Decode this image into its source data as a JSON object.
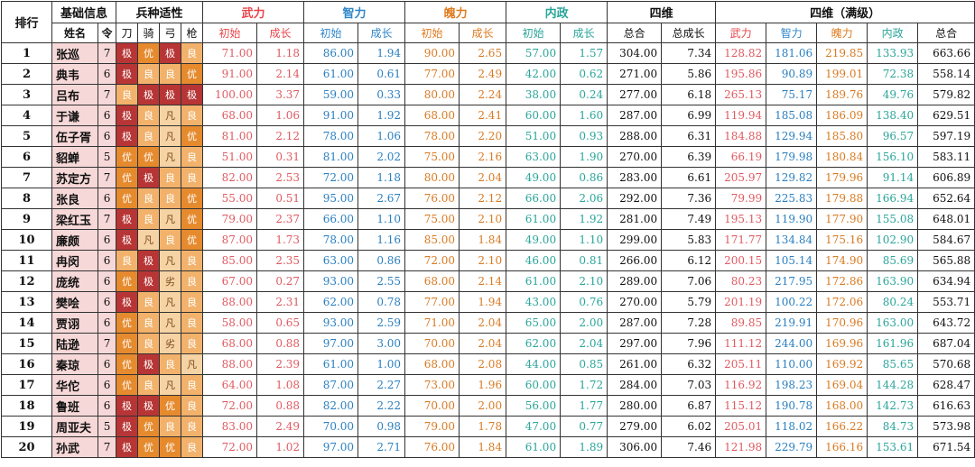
{
  "header": {
    "rank": "排行",
    "basic_info": "基础信息",
    "troop_fit": "兵种适性",
    "wu": "武力",
    "zhi": "智力",
    "mei": "魄力",
    "nei": "内政",
    "siwei": "四维",
    "siwei_max": "四维（满级）",
    "name": "姓名",
    "ling": "令",
    "dao": "刀",
    "qi": "骑",
    "gong": "弓",
    "qiang": "枪",
    "init": "初始",
    "grow": "成长",
    "total": "总合",
    "total_grow": "总成长"
  },
  "colors": {
    "wu": "#e05a60",
    "zhi": "#2a7fc0",
    "mei": "#d97a22",
    "nei": "#2aa59a",
    "name_bg": "#f7d8d8",
    "apt_ji": "#b83535",
    "apt_you": "#e68a2e",
    "apt_liang": "#f2b26b",
    "apt_fan": "#f6d3a4"
  },
  "rows": [
    {
      "rank": "1",
      "name": "张巡",
      "ling": "7",
      "apt": [
        "极",
        "优",
        "极",
        "良"
      ],
      "wu_i": "71.00",
      "wu_g": "1.18",
      "zhi_i": "86.00",
      "zhi_g": "1.94",
      "mei_i": "90.00",
      "mei_g": "2.65",
      "nei_i": "57.00",
      "nei_g": "1.57",
      "total": "304.00",
      "total_g": "7.34",
      "m_wu": "128.82",
      "m_zhi": "181.06",
      "m_mei": "219.85",
      "m_nei": "133.93",
      "m_total": "663.66"
    },
    {
      "rank": "2",
      "name": "典韦",
      "ling": "6",
      "apt": [
        "极",
        "良",
        "良",
        "优"
      ],
      "wu_i": "91.00",
      "wu_g": "2.14",
      "zhi_i": "61.00",
      "zhi_g": "0.61",
      "mei_i": "77.00",
      "mei_g": "2.49",
      "nei_i": "42.00",
      "nei_g": "0.62",
      "total": "271.00",
      "total_g": "5.86",
      "m_wu": "195.86",
      "m_zhi": "90.89",
      "m_mei": "199.01",
      "m_nei": "72.38",
      "m_total": "558.14"
    },
    {
      "rank": "3",
      "name": "吕布",
      "ling": "7",
      "apt": [
        "良",
        "极",
        "极",
        "极"
      ],
      "wu_i": "100.00",
      "wu_g": "3.37",
      "zhi_i": "59.00",
      "zhi_g": "0.33",
      "mei_i": "80.00",
      "mei_g": "2.24",
      "nei_i": "38.00",
      "nei_g": "0.24",
      "total": "277.00",
      "total_g": "6.18",
      "m_wu": "265.13",
      "m_zhi": "75.17",
      "m_mei": "189.76",
      "m_nei": "49.76",
      "m_total": "579.82"
    },
    {
      "rank": "4",
      "name": "于谦",
      "ling": "6",
      "apt": [
        "极",
        "良",
        "凡",
        "良"
      ],
      "wu_i": "68.00",
      "wu_g": "1.06",
      "zhi_i": "91.00",
      "zhi_g": "1.92",
      "mei_i": "68.00",
      "mei_g": "2.41",
      "nei_i": "60.00",
      "nei_g": "1.60",
      "total": "287.00",
      "total_g": "6.99",
      "m_wu": "119.94",
      "m_zhi": "185.08",
      "m_mei": "186.09",
      "m_nei": "138.40",
      "m_total": "629.51"
    },
    {
      "rank": "5",
      "name": "伍子胥",
      "ling": "6",
      "apt": [
        "极",
        "良",
        "凡",
        "优"
      ],
      "wu_i": "81.00",
      "wu_g": "2.12",
      "zhi_i": "78.00",
      "zhi_g": "1.06",
      "mei_i": "78.00",
      "mei_g": "2.20",
      "nei_i": "51.00",
      "nei_g": "0.93",
      "total": "288.00",
      "total_g": "6.31",
      "m_wu": "184.88",
      "m_zhi": "129.94",
      "m_mei": "185.80",
      "m_nei": "96.57",
      "m_total": "597.19"
    },
    {
      "rank": "6",
      "name": "貂蝉",
      "ling": "5",
      "apt": [
        "优",
        "优",
        "凡",
        "良"
      ],
      "wu_i": "51.00",
      "wu_g": "0.31",
      "zhi_i": "81.00",
      "zhi_g": "2.02",
      "mei_i": "75.00",
      "mei_g": "2.16",
      "nei_i": "63.00",
      "nei_g": "1.90",
      "total": "270.00",
      "total_g": "6.39",
      "m_wu": "66.19",
      "m_zhi": "179.98",
      "m_mei": "180.84",
      "m_nei": "156.10",
      "m_total": "583.11"
    },
    {
      "rank": "7",
      "name": "苏定方",
      "ling": "7",
      "apt": [
        "优",
        "极",
        "良",
        "良"
      ],
      "wu_i": "82.00",
      "wu_g": "2.53",
      "zhi_i": "72.00",
      "zhi_g": "1.18",
      "mei_i": "80.00",
      "mei_g": "2.04",
      "nei_i": "49.00",
      "nei_g": "0.86",
      "total": "283.00",
      "total_g": "6.61",
      "m_wu": "205.97",
      "m_zhi": "129.82",
      "m_mei": "179.96",
      "m_nei": "91.14",
      "m_total": "606.89"
    },
    {
      "rank": "8",
      "name": "张良",
      "ling": "6",
      "apt": [
        "优",
        "良",
        "良",
        "优"
      ],
      "wu_i": "55.00",
      "wu_g": "0.51",
      "zhi_i": "95.00",
      "zhi_g": "2.67",
      "mei_i": "76.00",
      "mei_g": "2.12",
      "nei_i": "66.00",
      "nei_g": "2.06",
      "total": "292.00",
      "total_g": "7.36",
      "m_wu": "79.99",
      "m_zhi": "225.83",
      "m_mei": "179.88",
      "m_nei": "166.94",
      "m_total": "652.64"
    },
    {
      "rank": "9",
      "name": "梁红玉",
      "ling": "7",
      "apt": [
        "极",
        "良",
        "凡",
        "优"
      ],
      "wu_i": "79.00",
      "wu_g": "2.37",
      "zhi_i": "66.00",
      "zhi_g": "1.10",
      "mei_i": "75.00",
      "mei_g": "2.10",
      "nei_i": "61.00",
      "nei_g": "1.92",
      "total": "281.00",
      "total_g": "7.49",
      "m_wu": "195.13",
      "m_zhi": "119.90",
      "m_mei": "177.90",
      "m_nei": "155.08",
      "m_total": "648.01"
    },
    {
      "rank": "10",
      "name": "廉颇",
      "ling": "6",
      "apt": [
        "极",
        "凡",
        "良",
        "优"
      ],
      "wu_i": "87.00",
      "wu_g": "1.73",
      "zhi_i": "78.00",
      "zhi_g": "1.16",
      "mei_i": "85.00",
      "mei_g": "1.84",
      "nei_i": "49.00",
      "nei_g": "1.10",
      "total": "299.00",
      "total_g": "5.83",
      "m_wu": "171.77",
      "m_zhi": "134.84",
      "m_mei": "175.16",
      "m_nei": "102.90",
      "m_total": "584.67"
    },
    {
      "rank": "11",
      "name": "冉闵",
      "ling": "6",
      "apt": [
        "良",
        "极",
        "凡",
        "良"
      ],
      "wu_i": "85.00",
      "wu_g": "2.35",
      "zhi_i": "63.00",
      "zhi_g": "0.86",
      "mei_i": "72.00",
      "mei_g": "2.10",
      "nei_i": "46.00",
      "nei_g": "0.81",
      "total": "266.00",
      "total_g": "6.12",
      "m_wu": "200.15",
      "m_zhi": "105.14",
      "m_mei": "174.90",
      "m_nei": "85.69",
      "m_total": "565.88"
    },
    {
      "rank": "12",
      "name": "庞统",
      "ling": "6",
      "apt": [
        "优",
        "极",
        "劣",
        "良"
      ],
      "wu_i": "67.00",
      "wu_g": "0.27",
      "zhi_i": "93.00",
      "zhi_g": "2.55",
      "mei_i": "68.00",
      "mei_g": "2.14",
      "nei_i": "61.00",
      "nei_g": "2.10",
      "total": "289.00",
      "total_g": "7.06",
      "m_wu": "80.23",
      "m_zhi": "217.95",
      "m_mei": "172.86",
      "m_nei": "163.90",
      "m_total": "634.94"
    },
    {
      "rank": "13",
      "name": "樊哙",
      "ling": "6",
      "apt": [
        "极",
        "良",
        "凡",
        "良"
      ],
      "wu_i": "88.00",
      "wu_g": "2.31",
      "zhi_i": "62.00",
      "zhi_g": "0.78",
      "mei_i": "77.00",
      "mei_g": "1.94",
      "nei_i": "43.00",
      "nei_g": "0.76",
      "total": "270.00",
      "total_g": "5.79",
      "m_wu": "201.19",
      "m_zhi": "100.22",
      "m_mei": "172.06",
      "m_nei": "80.24",
      "m_total": "553.71"
    },
    {
      "rank": "14",
      "name": "贾诩",
      "ling": "6",
      "apt": [
        "优",
        "良",
        "凡",
        "良"
      ],
      "wu_i": "58.00",
      "wu_g": "0.65",
      "zhi_i": "93.00",
      "zhi_g": "2.59",
      "mei_i": "71.00",
      "mei_g": "2.04",
      "nei_i": "65.00",
      "nei_g": "2.00",
      "total": "287.00",
      "total_g": "7.28",
      "m_wu": "89.85",
      "m_zhi": "219.91",
      "m_mei": "170.96",
      "m_nei": "163.00",
      "m_total": "643.72"
    },
    {
      "rank": "15",
      "name": "陆逊",
      "ling": "7",
      "apt": [
        "优",
        "良",
        "劣",
        "良"
      ],
      "wu_i": "68.00",
      "wu_g": "0.88",
      "zhi_i": "97.00",
      "zhi_g": "3.00",
      "mei_i": "70.00",
      "mei_g": "2.04",
      "nei_i": "62.00",
      "nei_g": "2.04",
      "total": "297.00",
      "total_g": "7.96",
      "m_wu": "111.12",
      "m_zhi": "244.00",
      "m_mei": "169.96",
      "m_nei": "161.96",
      "m_total": "687.04"
    },
    {
      "rank": "16",
      "name": "秦琼",
      "ling": "6",
      "apt": [
        "优",
        "极",
        "良",
        "凡"
      ],
      "wu_i": "88.00",
      "wu_g": "2.39",
      "zhi_i": "61.00",
      "zhi_g": "1.00",
      "mei_i": "68.00",
      "mei_g": "2.08",
      "nei_i": "44.00",
      "nei_g": "0.85",
      "total": "261.00",
      "total_g": "6.32",
      "m_wu": "205.11",
      "m_zhi": "110.00",
      "m_mei": "169.92",
      "m_nei": "85.65",
      "m_total": "570.68"
    },
    {
      "rank": "17",
      "name": "华佗",
      "ling": "6",
      "apt": [
        "优",
        "良",
        "凡",
        "良"
      ],
      "wu_i": "64.00",
      "wu_g": "1.08",
      "zhi_i": "87.00",
      "zhi_g": "2.27",
      "mei_i": "73.00",
      "mei_g": "1.96",
      "nei_i": "60.00",
      "nei_g": "1.72",
      "total": "284.00",
      "total_g": "7.03",
      "m_wu": "116.92",
      "m_zhi": "198.23",
      "m_mei": "169.04",
      "m_nei": "144.28",
      "m_total": "628.47"
    },
    {
      "rank": "18",
      "name": "鲁班",
      "ling": "6",
      "apt": [
        "极",
        "极",
        "优",
        "良"
      ],
      "wu_i": "72.00",
      "wu_g": "0.88",
      "zhi_i": "82.00",
      "zhi_g": "2.22",
      "mei_i": "70.00",
      "mei_g": "2.00",
      "nei_i": "56.00",
      "nei_g": "1.77",
      "total": "280.00",
      "total_g": "6.87",
      "m_wu": "115.12",
      "m_zhi": "190.78",
      "m_mei": "168.00",
      "m_nei": "142.73",
      "m_total": "616.63"
    },
    {
      "rank": "19",
      "name": "周亚夫",
      "ling": "5",
      "apt": [
        "极",
        "优",
        "良",
        "良"
      ],
      "wu_i": "83.00",
      "wu_g": "2.49",
      "zhi_i": "70.00",
      "zhi_g": "0.98",
      "mei_i": "79.00",
      "mei_g": "1.78",
      "nei_i": "47.00",
      "nei_g": "0.77",
      "total": "279.00",
      "total_g": "6.02",
      "m_wu": "205.01",
      "m_zhi": "118.02",
      "m_mei": "166.22",
      "m_nei": "84.73",
      "m_total": "573.98"
    },
    {
      "rank": "20",
      "name": "孙武",
      "ling": "7",
      "apt": [
        "极",
        "优",
        "优",
        "良"
      ],
      "wu_i": "72.00",
      "wu_g": "1.02",
      "zhi_i": "97.00",
      "zhi_g": "2.71",
      "mei_i": "76.00",
      "mei_g": "1.84",
      "nei_i": "61.00",
      "nei_g": "1.89",
      "total": "306.00",
      "total_g": "7.46",
      "m_wu": "121.98",
      "m_zhi": "229.79",
      "m_mei": "166.16",
      "m_nei": "153.61",
      "m_total": "671.54"
    }
  ]
}
